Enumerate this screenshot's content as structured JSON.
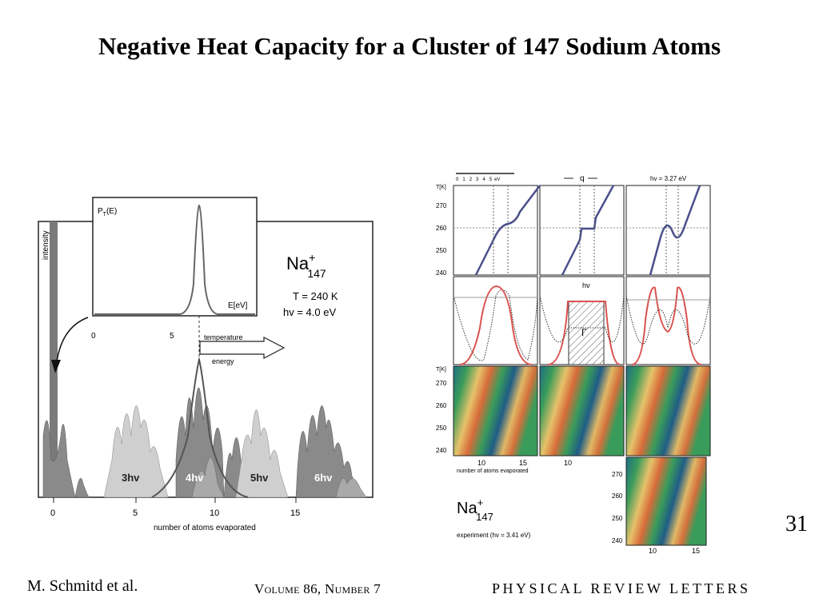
{
  "slide": {
    "title": "Negative Heat Capacity for a Cluster of 147 Sodium Atoms",
    "page_number": "31",
    "author": "M. Schmitd et al.",
    "volume": "Volume 86, Number 7",
    "journal": "PHYSICAL REVIEW LETTERS"
  },
  "left_figure": {
    "intensity_label": "intensity",
    "inset_ylabel": "P",
    "inset_ylabel_sub": "T",
    "inset_ylabel_arg": "(E)",
    "inset_xlabel": "E[eV]",
    "inset_ticks": [
      "0",
      "5"
    ],
    "species_base": "Na",
    "species_charge": "+",
    "species_sub": "147",
    "temperature": "T = 240 K",
    "photon_energy": "hv = 4.0 eV",
    "arrow_label_top": "temperature",
    "arrow_label_bottom": "energy",
    "peak_labels": [
      "3hv",
      "4hv",
      "5hv",
      "6hv"
    ],
    "x_ticks": [
      "0",
      "5",
      "10",
      "15"
    ],
    "xlabel": "number of atoms evaporated"
  },
  "right_figure": {
    "scale_ticks": [
      "0",
      "1",
      "2",
      "3",
      "4",
      "5"
    ],
    "scale_unit": "eV",
    "q_label": "q",
    "hv_label": "hv = 3.27 eV",
    "t_label": "T[K]",
    "t_ticks": [
      "270",
      "260",
      "250",
      "240"
    ],
    "x_ticks": [
      "10",
      "15",
      "10",
      "15"
    ],
    "xlabel": "number of atoms evaporated",
    "mid_hv_label": "hv",
    "mid_gamma_label": "Γ",
    "species_base": "Na",
    "species_charge": "+",
    "species_sub": "147",
    "experiment_label": "experiment (hv = 3.41 eV)",
    "exp_x_ticks": [
      "10",
      "15"
    ]
  }
}
